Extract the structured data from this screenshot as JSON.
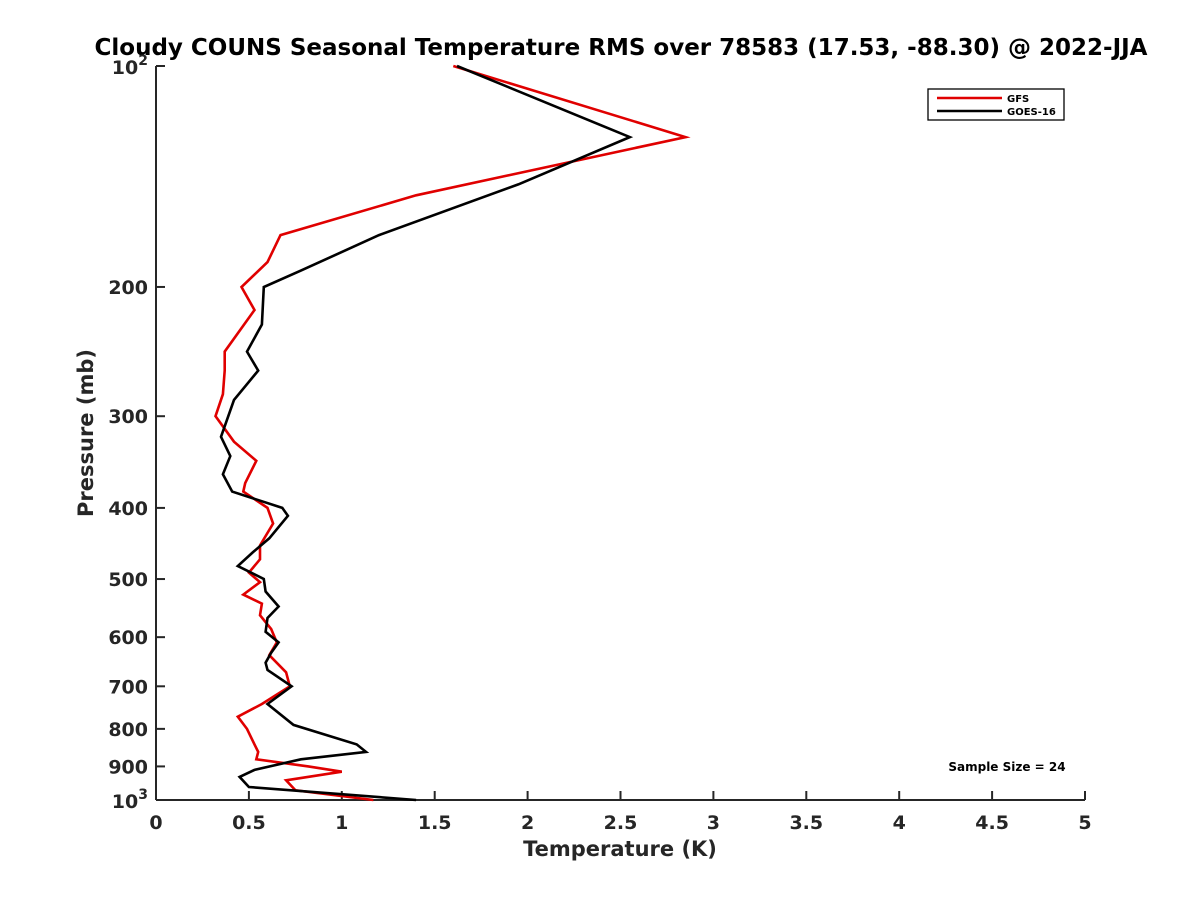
{
  "chart_data": {
    "type": "line",
    "title": "Cloudy COUNS Seasonal Temperature RMS over 78583 (17.53, -88.30) @ 2022-JJA",
    "xlabel": "Temperature (K)",
    "ylabel": "Pressure (mb)",
    "xlim": [
      0,
      5
    ],
    "ylim": [
      100,
      1000
    ],
    "yscale": "log",
    "yreversed": true,
    "xticks": [
      0,
      0.5,
      1,
      1.5,
      2,
      2.5,
      3,
      3.5,
      4,
      4.5,
      5
    ],
    "xtick_labels": [
      "0",
      "0.5",
      "1",
      "1.5",
      "2",
      "2.5",
      "3",
      "3.5",
      "4",
      "4.5",
      "5"
    ],
    "yticks": [
      {
        "value": 100,
        "base": "10",
        "exp": "2",
        "label": ""
      },
      {
        "value": 200,
        "label": "200"
      },
      {
        "value": 300,
        "label": "300"
      },
      {
        "value": 400,
        "label": "400"
      },
      {
        "value": 500,
        "label": "500"
      },
      {
        "value": 600,
        "label": "600"
      },
      {
        "value": 700,
        "label": "700"
      },
      {
        "value": 800,
        "label": "800"
      },
      {
        "value": 900,
        "label": "900"
      },
      {
        "value": 1000,
        "base": "10",
        "exp": "3",
        "label": ""
      }
    ],
    "legend_position": "top-right",
    "annotation": "Sample Size = 24",
    "series": [
      {
        "name": "GFS",
        "color": "#e00000",
        "points": [
          [
            1.6,
            100
          ],
          [
            2.85,
            125
          ],
          [
            1.4,
            150
          ],
          [
            0.67,
            170
          ],
          [
            0.6,
            185
          ],
          [
            0.46,
            200
          ],
          [
            0.53,
            215
          ],
          [
            0.37,
            245
          ],
          [
            0.37,
            260
          ],
          [
            0.36,
            280
          ],
          [
            0.32,
            300
          ],
          [
            0.42,
            325
          ],
          [
            0.54,
            345
          ],
          [
            0.48,
            370
          ],
          [
            0.47,
            380
          ],
          [
            0.6,
            400
          ],
          [
            0.63,
            420
          ],
          [
            0.56,
            450
          ],
          [
            0.56,
            470
          ],
          [
            0.5,
            490
          ],
          [
            0.56,
            505
          ],
          [
            0.47,
            525
          ],
          [
            0.57,
            540
          ],
          [
            0.56,
            560
          ],
          [
            0.62,
            585
          ],
          [
            0.65,
            610
          ],
          [
            0.61,
            635
          ],
          [
            0.7,
            670
          ],
          [
            0.72,
            700
          ],
          [
            0.57,
            740
          ],
          [
            0.44,
            770
          ],
          [
            0.49,
            800
          ],
          [
            0.53,
            840
          ],
          [
            0.55,
            860
          ],
          [
            0.54,
            880
          ],
          [
            0.82,
            900
          ],
          [
            1.0,
            915
          ],
          [
            0.7,
            940
          ],
          [
            0.75,
            970
          ],
          [
            1.17,
            1000
          ]
        ]
      },
      {
        "name": "GOES-16",
        "color": "#000000",
        "points": [
          [
            1.62,
            100
          ],
          [
            2.55,
            125
          ],
          [
            1.95,
            145
          ],
          [
            1.2,
            170
          ],
          [
            0.78,
            190
          ],
          [
            0.58,
            200
          ],
          [
            0.57,
            225
          ],
          [
            0.49,
            245
          ],
          [
            0.55,
            260
          ],
          [
            0.42,
            285
          ],
          [
            0.35,
            320
          ],
          [
            0.4,
            340
          ],
          [
            0.36,
            360
          ],
          [
            0.41,
            380
          ],
          [
            0.68,
            400
          ],
          [
            0.71,
            410
          ],
          [
            0.61,
            440
          ],
          [
            0.52,
            460
          ],
          [
            0.44,
            480
          ],
          [
            0.58,
            500
          ],
          [
            0.59,
            520
          ],
          [
            0.66,
            545
          ],
          [
            0.6,
            565
          ],
          [
            0.59,
            590
          ],
          [
            0.66,
            610
          ],
          [
            0.62,
            630
          ],
          [
            0.59,
            650
          ],
          [
            0.6,
            665
          ],
          [
            0.73,
            700
          ],
          [
            0.6,
            740
          ],
          [
            0.74,
            790
          ],
          [
            1.08,
            840
          ],
          [
            1.13,
            860
          ],
          [
            0.78,
            880
          ],
          [
            0.53,
            910
          ],
          [
            0.45,
            930
          ],
          [
            0.5,
            960
          ],
          [
            1.4,
            1000
          ]
        ]
      }
    ]
  }
}
